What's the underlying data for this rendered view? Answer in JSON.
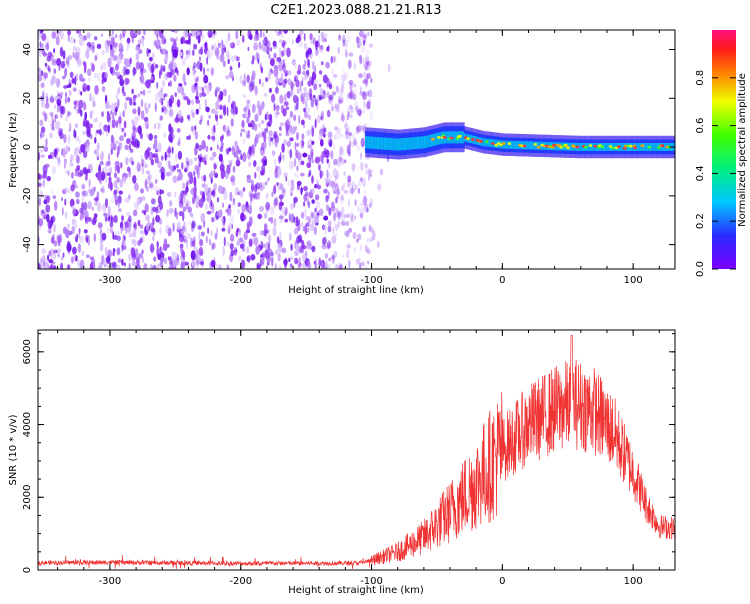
{
  "title": "C2E1.2023.088.21.21.R13",
  "colors": {
    "snr_line": "#f03232",
    "spectrogram_noise": "#7a1ef0",
    "axis": "#000000"
  },
  "chart_data": [
    {
      "type": "heatmap",
      "xlabel": "Height of straight line (km)",
      "ylabel": "Frequency (Hz)",
      "xlim": [
        -355,
        132
      ],
      "ylim": [
        -50,
        48
      ],
      "xticks": [
        -300,
        -200,
        -100,
        0,
        100
      ],
      "yticks": [
        -40,
        -20,
        0,
        20,
        40
      ],
      "colorbar": {
        "label": "Normalized spectral amplitude",
        "range": [
          0,
          1
        ],
        "ticks": [
          0.0,
          0.2,
          0.4,
          0.6,
          0.8
        ],
        "colormap": "rainbow (violet to magenta)",
        "tick_labels": [
          "0.0",
          "0.2",
          "0.4",
          "0.6",
          "0.8"
        ]
      },
      "noise_region": {
        "x_from": -355,
        "x_to": -100
      },
      "echo_trace": [
        {
          "x": -105,
          "y": 2
        },
        {
          "x": -80,
          "y": 1
        },
        {
          "x": -60,
          "y": 2
        },
        {
          "x": -45,
          "y": 4
        },
        {
          "x": -30,
          "y": 4
        },
        {
          "x": -15,
          "y": 2
        },
        {
          "x": 0,
          "y": 1
        },
        {
          "x": 30,
          "y": 0.5
        },
        {
          "x": 60,
          "y": 0
        },
        {
          "x": 100,
          "y": 0
        },
        {
          "x": 132,
          "y": 0
        }
      ],
      "legend": "right (colorbar)",
      "grid": false
    },
    {
      "type": "line",
      "xlabel": "Height of straight line (km)",
      "ylabel": "SNR (10 * v/v)",
      "xlim": [
        -355,
        132
      ],
      "ylim": [
        0,
        6600
      ],
      "xticks": [
        -300,
        -200,
        -100,
        0,
        100
      ],
      "yticks": [
        0,
        2000,
        4000,
        6000
      ],
      "envelope": [
        {
          "x": -355,
          "y": 200
        },
        {
          "x": -300,
          "y": 210
        },
        {
          "x": -200,
          "y": 180
        },
        {
          "x": -110,
          "y": 190
        },
        {
          "x": -100,
          "y": 260
        },
        {
          "x": -80,
          "y": 500
        },
        {
          "x": -60,
          "y": 900
        },
        {
          "x": -40,
          "y": 1600
        },
        {
          "x": -20,
          "y": 2400
        },
        {
          "x": 0,
          "y": 3300
        },
        {
          "x": 20,
          "y": 4000
        },
        {
          "x": 40,
          "y": 4400
        },
        {
          "x": 55,
          "y": 4600
        },
        {
          "x": 70,
          "y": 4400
        },
        {
          "x": 85,
          "y": 3800
        },
        {
          "x": 100,
          "y": 2700
        },
        {
          "x": 110,
          "y": 1800
        },
        {
          "x": 120,
          "y": 1200
        },
        {
          "x": 132,
          "y": 1150
        }
      ],
      "peak": {
        "x": 53,
        "y": 6450
      },
      "grid": false
    }
  ]
}
